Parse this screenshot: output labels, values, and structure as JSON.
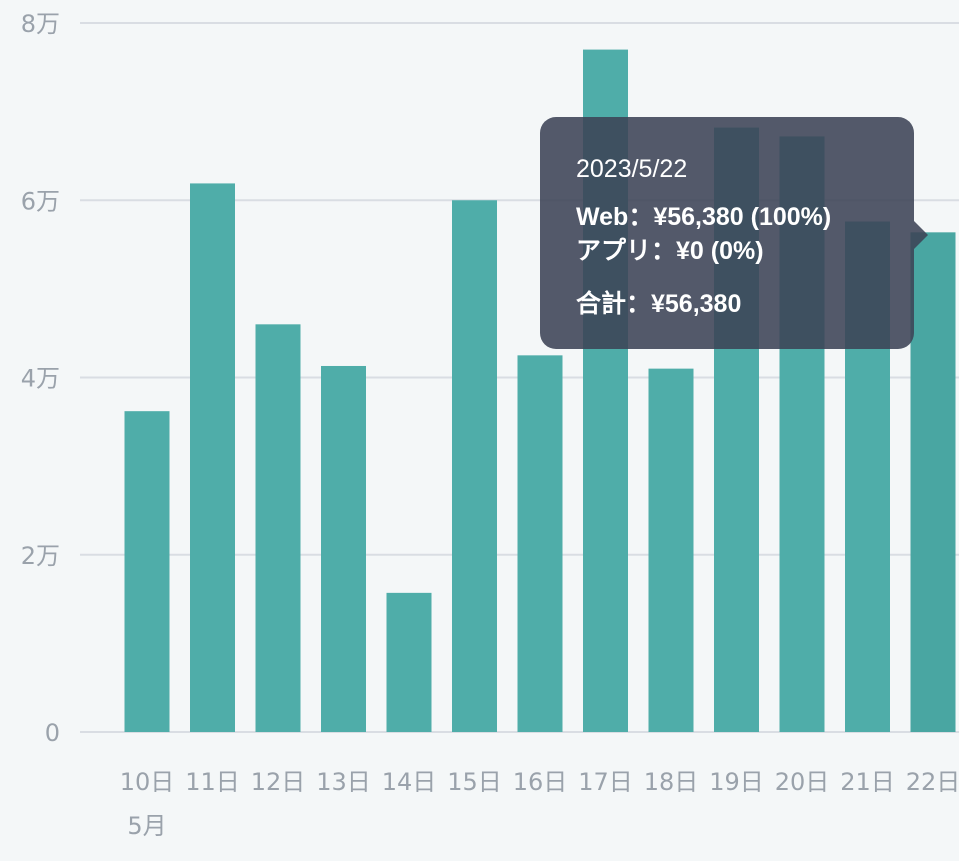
{
  "chart_data": {
    "type": "bar",
    "categories": [
      "10日",
      "11日",
      "12日",
      "13日",
      "14日",
      "15日",
      "16日",
      "17日",
      "18日",
      "19日",
      "20日",
      "21日",
      "22日"
    ],
    "month_label": "5月",
    "values": [
      36200,
      61900,
      46000,
      41300,
      15700,
      60000,
      42500,
      77000,
      41000,
      68200,
      67200,
      57600,
      56380
    ],
    "ylim": [
      0,
      80000
    ],
    "yticks": [
      {
        "value": 0,
        "label": "0"
      },
      {
        "value": 20000,
        "label": "2万"
      },
      {
        "value": 40000,
        "label": "4万"
      },
      {
        "value": 60000,
        "label": "6万"
      },
      {
        "value": 80000,
        "label": "8万"
      }
    ],
    "grid": true,
    "bar_color": "#4fada9",
    "highlight_color": "#49a6a2",
    "highlight_index": 12
  },
  "tooltip": {
    "date": "2023/5/22",
    "web": "Web：¥56,380 (100%)",
    "app": "アプリ：¥0 (0%)",
    "total": "合計：¥56,380"
  }
}
